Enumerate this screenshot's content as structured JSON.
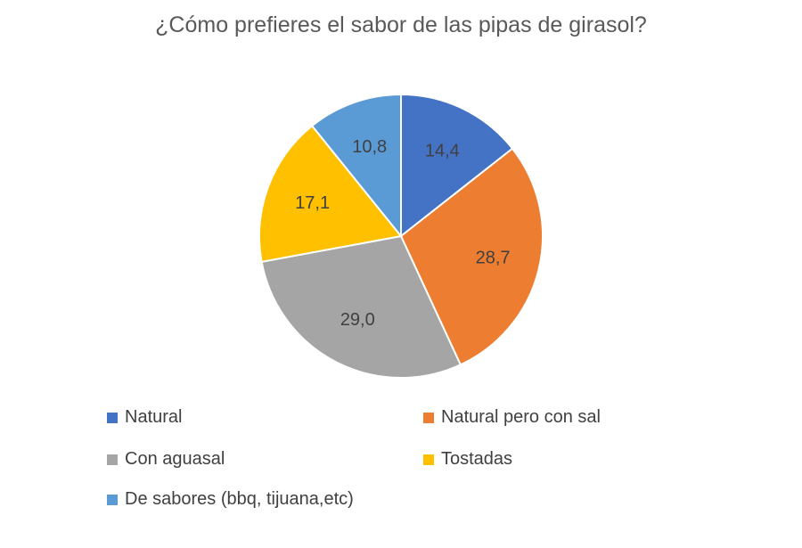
{
  "chart_data": {
    "type": "pie",
    "title": "¿Cómo prefieres el sabor de las pipas de girasol?",
    "categories": [
      "Natural",
      "Natural pero con sal",
      "Con aguasal",
      "Tostadas",
      "De sabores (bbq, tijuana,etc)"
    ],
    "values": [
      14.4,
      28.7,
      29.0,
      17.1,
      10.8
    ],
    "data_labels": [
      "14,4",
      "28,7",
      "29,0",
      "17,1",
      "10,8"
    ],
    "colors": [
      "#4472C4",
      "#ED7D31",
      "#A5A5A5",
      "#FFC000",
      "#5B9BD5"
    ],
    "legend_position": "bottom",
    "start_angle": "top, clockwise"
  }
}
